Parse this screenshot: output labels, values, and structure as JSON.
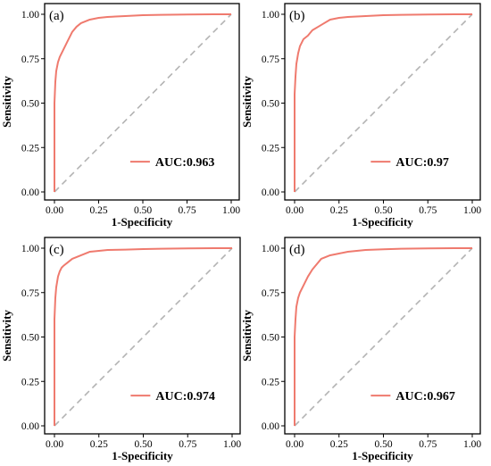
{
  "colors": {
    "curve": "#ef7a6e",
    "diagonal": "#b3b3b3",
    "frame": "#000000",
    "background": "#ffffff"
  },
  "chart_data": [
    {
      "type": "line",
      "panel_label": "(a)",
      "xlabel": "1-Specificity",
      "ylabel": "Sensitivity",
      "xlim": [
        0,
        1
      ],
      "ylim": [
        0,
        1
      ],
      "x_ticks": [
        "0.00",
        "0.25",
        "0.50",
        "0.75",
        "1.00"
      ],
      "y_ticks": [
        "0.00",
        "0.25",
        "0.50",
        "0.75",
        "1.00"
      ],
      "grid": false,
      "legend_position": "bottom-right",
      "legend_text": "AUC:0.963",
      "diagonal": [
        [
          0,
          0
        ],
        [
          1,
          1
        ]
      ],
      "series": [
        {
          "x": [
            0,
            0,
            0.005,
            0.01,
            0.02,
            0.03,
            0.05,
            0.075,
            0.1,
            0.125,
            0.15,
            0.2,
            0.25,
            0.3,
            0.4,
            0.5,
            0.6,
            0.75,
            0.9,
            1.0
          ],
          "y": [
            0,
            0.5,
            0.62,
            0.68,
            0.73,
            0.76,
            0.8,
            0.85,
            0.9,
            0.93,
            0.95,
            0.97,
            0.98,
            0.985,
            0.99,
            0.995,
            0.997,
            0.999,
            1.0,
            1.0
          ]
        }
      ]
    },
    {
      "type": "line",
      "panel_label": "(b)",
      "xlabel": "1-Specificity",
      "ylabel": "Sensitivity",
      "xlim": [
        0,
        1
      ],
      "ylim": [
        0,
        1
      ],
      "x_ticks": [
        "0.00",
        "0.25",
        "0.50",
        "0.75",
        "1.00"
      ],
      "y_ticks": [
        "0.00",
        "0.25",
        "0.50",
        "0.75",
        "1.00"
      ],
      "grid": false,
      "legend_position": "bottom-right",
      "legend_text": "AUC:0.97",
      "diagonal": [
        [
          0,
          0
        ],
        [
          1,
          1
        ]
      ],
      "series": [
        {
          "x": [
            0,
            0,
            0.005,
            0.01,
            0.02,
            0.03,
            0.05,
            0.075,
            0.1,
            0.15,
            0.2,
            0.25,
            0.3,
            0.4,
            0.5,
            0.6,
            0.75,
            0.9,
            1.0
          ],
          "y": [
            0,
            0.55,
            0.65,
            0.72,
            0.78,
            0.82,
            0.86,
            0.88,
            0.91,
            0.94,
            0.97,
            0.98,
            0.985,
            0.99,
            0.995,
            0.997,
            0.999,
            1.0,
            1.0
          ]
        }
      ]
    },
    {
      "type": "line",
      "panel_label": "(c)",
      "xlabel": "1-Specificity",
      "ylabel": "Sensitivity",
      "xlim": [
        0,
        1
      ],
      "ylim": [
        0,
        1
      ],
      "x_ticks": [
        "0.00",
        "0.25",
        "0.50",
        "0.75",
        "1.00"
      ],
      "y_ticks": [
        "0.00",
        "0.25",
        "0.50",
        "0.75",
        "1.00"
      ],
      "grid": false,
      "legend_position": "bottom-right",
      "legend_text": "AUC:0.974",
      "diagonal": [
        [
          0,
          0
        ],
        [
          1,
          1
        ]
      ],
      "series": [
        {
          "x": [
            0,
            0,
            0.005,
            0.01,
            0.02,
            0.03,
            0.04,
            0.05,
            0.075,
            0.1,
            0.15,
            0.2,
            0.25,
            0.3,
            0.4,
            0.5,
            0.6,
            0.75,
            0.9,
            1.0
          ],
          "y": [
            0,
            0.6,
            0.72,
            0.78,
            0.84,
            0.87,
            0.89,
            0.9,
            0.92,
            0.94,
            0.96,
            0.98,
            0.985,
            0.99,
            0.992,
            0.995,
            0.997,
            0.999,
            1.0,
            1.0
          ]
        }
      ]
    },
    {
      "type": "line",
      "panel_label": "(d)",
      "xlabel": "1-Specificity",
      "ylabel": "Sensitivity",
      "xlim": [
        0,
        1
      ],
      "ylim": [
        0,
        1
      ],
      "x_ticks": [
        "0.00",
        "0.25",
        "0.50",
        "0.75",
        "1.00"
      ],
      "y_ticks": [
        "0.00",
        "0.25",
        "0.50",
        "0.75",
        "1.00"
      ],
      "grid": false,
      "legend_position": "bottom-right",
      "legend_text": "AUC:0.967",
      "diagonal": [
        [
          0,
          0
        ],
        [
          1,
          1
        ]
      ],
      "series": [
        {
          "x": [
            0,
            0,
            0.005,
            0.01,
            0.02,
            0.03,
            0.05,
            0.075,
            0.1,
            0.125,
            0.15,
            0.2,
            0.25,
            0.3,
            0.4,
            0.5,
            0.6,
            0.75,
            0.9,
            1.0
          ],
          "y": [
            0,
            0.5,
            0.6,
            0.67,
            0.72,
            0.75,
            0.79,
            0.84,
            0.88,
            0.91,
            0.94,
            0.96,
            0.97,
            0.98,
            0.99,
            0.994,
            0.997,
            0.999,
            1.0,
            1.0
          ]
        }
      ]
    }
  ]
}
